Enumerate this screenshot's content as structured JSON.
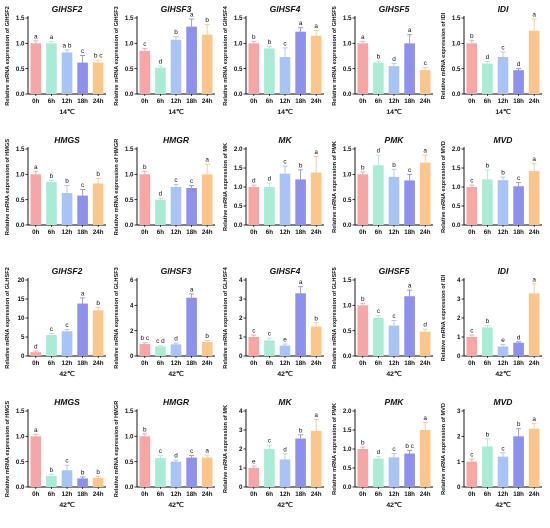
{
  "colors": [
    "#f7a5a5",
    "#a9ecd6",
    "#a8c4f6",
    "#8c91ee",
    "#fcc58a"
  ],
  "chart_data": [
    {
      "type": "bar",
      "title": "GlHSF2",
      "ylabel": "Relative mRNA expression of GlHSF2",
      "condition": "14℃",
      "categories": [
        "0h",
        "6h",
        "12h",
        "18h",
        "24h"
      ],
      "values": [
        1.0,
        1.0,
        0.82,
        0.62,
        0.62
      ],
      "errors": [
        0.05,
        0.04,
        0.05,
        0.14,
        0.05
      ],
      "letters": [
        "a",
        "a",
        "a b",
        "c",
        "b c"
      ],
      "ylim": [
        0,
        1.5
      ],
      "yticks": [
        "0.0",
        "0.5",
        "1.0",
        "1.5"
      ]
    },
    {
      "type": "bar",
      "title": "GlHSF3",
      "ylabel": "Relative mRNA expression of GlHSF3",
      "condition": "14℃",
      "categories": [
        "0h",
        "6h",
        "12h",
        "18h",
        "24h"
      ],
      "values": [
        0.85,
        0.52,
        1.07,
        1.33,
        1.17
      ],
      "errors": [
        0.05,
        0.03,
        0.06,
        0.15,
        0.2
      ],
      "letters": [
        "c",
        "d",
        "b",
        "a",
        "b"
      ],
      "ylim": [
        0,
        1.5
      ],
      "yticks": [
        "0.0",
        "0.5",
        "1.0",
        "1.5"
      ]
    },
    {
      "type": "bar",
      "title": "GlHSF4",
      "ylabel": "Relative mRNA expression of GlHSF4",
      "condition": "14℃",
      "categories": [
        "0h",
        "6h",
        "12h",
        "18h",
        "24h"
      ],
      "values": [
        1.0,
        0.9,
        0.73,
        1.23,
        1.15
      ],
      "errors": [
        0.04,
        0.04,
        0.18,
        0.08,
        0.1
      ],
      "letters": [
        "b",
        "b",
        "c",
        "a",
        "a"
      ],
      "ylim": [
        0,
        1.5
      ],
      "yticks": [
        "0.0",
        "0.5",
        "1.0",
        "1.5"
      ]
    },
    {
      "type": "bar",
      "title": "GlHSF5",
      "ylabel": "Relative mRNA expression of GlHSF5",
      "condition": "14℃",
      "categories": [
        "0h",
        "6h",
        "12h",
        "18h",
        "24h"
      ],
      "values": [
        1.0,
        0.62,
        0.55,
        1.0,
        0.47
      ],
      "errors": [
        0.04,
        0.03,
        0.05,
        0.17,
        0.05
      ],
      "letters": [
        "a",
        "b",
        "d",
        "a",
        "c"
      ],
      "ylim": [
        0,
        1.5
      ],
      "yticks": [
        "0.0",
        "0.5",
        "1.0",
        "1.5"
      ]
    },
    {
      "type": "bar",
      "title": "IDI",
      "ylabel": "Relative mRNA expression of IDI",
      "condition": "14℃",
      "categories": [
        "0h",
        "6h",
        "12h",
        "18h",
        "24h"
      ],
      "values": [
        1.0,
        0.6,
        0.73,
        0.47,
        1.25
      ],
      "errors": [
        0.06,
        0.04,
        0.1,
        0.03,
        0.23
      ],
      "letters": [
        "b",
        "d",
        "c",
        "d",
        "a"
      ],
      "ylim": [
        0,
        1.5
      ],
      "yticks": [
        "0.0",
        "0.5",
        "1.0",
        "1.5"
      ]
    },
    {
      "type": "bar",
      "title": "HMGS",
      "ylabel": "Relative mRNA expression of HMGS",
      "condition": "",
      "categories": [
        "0h",
        "6h",
        "12h",
        "18h",
        "24h"
      ],
      "values": [
        1.0,
        0.85,
        0.63,
        0.58,
        0.82
      ],
      "errors": [
        0.06,
        0.03,
        0.15,
        0.12,
        0.1
      ],
      "letters": [
        "a",
        "b",
        "b",
        "c",
        "b"
      ],
      "ylim": [
        0,
        1.5
      ],
      "yticks": [
        "0.0",
        "0.5",
        "1.0",
        "1.5"
      ]
    },
    {
      "type": "bar",
      "title": "HMGR",
      "ylabel": "Relative mRNA expression of HMGR",
      "condition": "",
      "categories": [
        "0h",
        "6h",
        "12h",
        "18h",
        "24h"
      ],
      "values": [
        1.0,
        0.5,
        0.75,
        0.73,
        1.0
      ],
      "errors": [
        0.06,
        0.03,
        0.05,
        0.05,
        0.2
      ],
      "letters": [
        "b",
        "d",
        "c",
        "c",
        "a"
      ],
      "ylim": [
        0,
        1.5
      ],
      "yticks": [
        "0.0",
        "0.5",
        "1.0",
        "1.5"
      ]
    },
    {
      "type": "bar",
      "title": "MK",
      "ylabel": "Relative mRNA expression of MK",
      "condition": "",
      "categories": [
        "0h",
        "6h",
        "12h",
        "18h",
        "24h"
      ],
      "values": [
        1.0,
        1.0,
        1.35,
        1.2,
        1.38
      ],
      "errors": [
        0.05,
        0.1,
        0.2,
        0.25,
        0.42
      ],
      "letters": [
        "d",
        "d",
        "c",
        "b",
        "a"
      ],
      "ylim": [
        0,
        2.0
      ],
      "yticks": [
        "0.0",
        "0.5",
        "1.0",
        "1.5",
        "2.0"
      ]
    },
    {
      "type": "bar",
      "title": "PMK",
      "ylabel": "Relative mRNA expression of PMK",
      "condition": "",
      "categories": [
        "0h",
        "6h",
        "12h",
        "18h",
        "24h"
      ],
      "values": [
        1.0,
        1.18,
        0.95,
        0.88,
        1.23
      ],
      "errors": [
        0.05,
        0.2,
        0.15,
        0.12,
        0.15
      ],
      "letters": [
        "b",
        "d",
        "b",
        "c",
        "a"
      ],
      "ylim": [
        0,
        1.5
      ],
      "yticks": [
        "0.0",
        "0.5",
        "1.0",
        "1.5"
      ]
    },
    {
      "type": "bar",
      "title": "MVD",
      "ylabel": "Relative mRNA expression of MVD",
      "condition": "",
      "categories": [
        "0h",
        "6h",
        "12h",
        "18h",
        "24h"
      ],
      "values": [
        1.0,
        1.2,
        1.18,
        1.02,
        1.42
      ],
      "errors": [
        0.05,
        0.25,
        0.08,
        0.1,
        0.2
      ],
      "letters": [
        "c",
        "b",
        "b",
        "c",
        "a"
      ],
      "ylim": [
        0,
        2.0
      ],
      "yticks": [
        "0.0",
        "0.5",
        "1.0",
        "1.5",
        "2.0"
      ]
    },
    {
      "type": "bar",
      "title": "GlHSF2",
      "ylabel": "Relative mRNA expression of GLHSF2",
      "condition": "42℃",
      "categories": [
        "0h",
        "6h",
        "12h",
        "18h",
        "24h"
      ],
      "values": [
        1.0,
        5.5,
        6.5,
        13.8,
        12.0
      ],
      "errors": [
        0.3,
        0.4,
        0.5,
        1.5,
        0.8
      ],
      "letters": [
        "d",
        "c",
        "c",
        "a",
        "b"
      ],
      "ylim": [
        0,
        20
      ],
      "yticks": [
        "0",
        "5",
        "10",
        "15",
        "20"
      ]
    },
    {
      "type": "bar",
      "title": "GlHSF3",
      "ylabel": "Relative mRNA expression of GLHSF3",
      "condition": "42℃",
      "categories": [
        "0h",
        "6h",
        "12h",
        "18h",
        "24h"
      ],
      "values": [
        0.95,
        0.75,
        0.92,
        4.6,
        1.1
      ],
      "errors": [
        0.1,
        0.08,
        0.1,
        0.3,
        0.12
      ],
      "letters": [
        "b c",
        "c d",
        "d",
        "a",
        "b"
      ],
      "ylim": [
        0,
        6
      ],
      "yticks": [
        "0",
        "2",
        "4",
        "6"
      ]
    },
    {
      "type": "bar",
      "title": "GlHSF4",
      "ylabel": "Relative mRNA expression of GLHSF4",
      "condition": "42℃",
      "categories": [
        "0h",
        "6h",
        "12h",
        "18h",
        "24h"
      ],
      "values": [
        1.0,
        0.82,
        0.55,
        3.3,
        1.55
      ],
      "errors": [
        0.1,
        0.12,
        0.08,
        0.35,
        0.2
      ],
      "letters": [
        "c",
        "c",
        "e",
        "a",
        "b"
      ],
      "ylim": [
        0,
        4
      ],
      "yticks": [
        "0",
        "1",
        "2",
        "3",
        "4"
      ]
    },
    {
      "type": "bar",
      "title": "GlHSF5",
      "ylabel": "Relative mRNA expression of GLHSF5",
      "condition": "42℃",
      "categories": [
        "0h",
        "6h",
        "12h",
        "18h",
        "24h"
      ],
      "values": [
        1.0,
        0.75,
        0.6,
        1.18,
        0.48
      ],
      "errors": [
        0.04,
        0.05,
        0.1,
        0.12,
        0.05
      ],
      "letters": [
        "b",
        "c",
        "c",
        "a",
        "d"
      ],
      "ylim": [
        0,
        1.5
      ],
      "yticks": [
        "0.0",
        "0.5",
        "1.0",
        "1.5"
      ]
    },
    {
      "type": "bar",
      "title": "IDI",
      "ylabel": "Relative mRNA expression of IDI",
      "condition": "42℃",
      "categories": [
        "0h",
        "6h",
        "12h",
        "18h",
        "24h"
      ],
      "values": [
        1.0,
        1.5,
        0.5,
        0.7,
        3.3
      ],
      "errors": [
        0.1,
        0.1,
        0.1,
        0.05,
        0.5
      ],
      "letters": [
        "c",
        "b",
        "e",
        "d",
        "a"
      ],
      "ylim": [
        0,
        4
      ],
      "yticks": [
        "0",
        "1",
        "2",
        "3",
        "4"
      ]
    },
    {
      "type": "bar",
      "title": "HMGS",
      "ylabel": "Relative mRNA expression of HMGS",
      "condition": "42℃",
      "categories": [
        "0h",
        "6h",
        "12h",
        "18h",
        "24h"
      ],
      "values": [
        1.0,
        0.22,
        0.33,
        0.17,
        0.18
      ],
      "errors": [
        0.04,
        0.03,
        0.1,
        0.03,
        0.03
      ],
      "letters": [
        "a",
        "b",
        "c",
        "b",
        "b"
      ],
      "ylim": [
        0,
        1.5
      ],
      "yticks": [
        "0.0",
        "0.5",
        "1.0",
        "1.5"
      ]
    },
    {
      "type": "bar",
      "title": "HMGR",
      "ylabel": "Relative mRNA expression of HMGR",
      "condition": "42℃",
      "categories": [
        "0h",
        "6h",
        "12h",
        "18h",
        "24h"
      ],
      "values": [
        1.0,
        0.57,
        0.5,
        0.58,
        0.58
      ],
      "errors": [
        0.05,
        0.05,
        0.03,
        0.04,
        0.05
      ],
      "letters": [
        "b",
        "c",
        "d",
        "c",
        "a"
      ],
      "ylim": [
        0,
        1.5
      ],
      "yticks": [
        "0.0",
        "0.5",
        "1.0",
        "1.5"
      ]
    },
    {
      "type": "bar",
      "title": "MK",
      "ylabel": "Relative mRNA expression of MK",
      "condition": "42℃",
      "categories": [
        "0h",
        "6h",
        "12h",
        "18h",
        "24h"
      ],
      "values": [
        1.0,
        2.0,
        1.45,
        2.55,
        2.95
      ],
      "errors": [
        0.1,
        0.2,
        0.3,
        0.2,
        0.6
      ],
      "letters": [
        "e",
        "c",
        "d",
        "b",
        "a"
      ],
      "ylim": [
        0,
        4
      ],
      "yticks": [
        "0",
        "1",
        "2",
        "3",
        "4"
      ]
    },
    {
      "type": "bar",
      "title": "PMK",
      "ylabel": "Relative mRNA expression of PMK",
      "condition": "42℃",
      "categories": [
        "0h",
        "6h",
        "12h",
        "18h",
        "24h"
      ],
      "values": [
        1.0,
        0.75,
        0.78,
        0.88,
        1.5
      ],
      "errors": [
        0.05,
        0.05,
        0.1,
        0.08,
        0.2
      ],
      "letters": [
        "b",
        "d",
        "c",
        "b c",
        "a"
      ],
      "ylim": [
        0,
        2.0
      ],
      "yticks": [
        "0.0",
        "0.5",
        "1.0",
        "1.5",
        "2.0"
      ]
    },
    {
      "type": "bar",
      "title": "MVD",
      "ylabel": "Relative mRNA expression of MVD",
      "condition": "42℃",
      "categories": [
        "0h",
        "6h",
        "12h",
        "18h",
        "24h"
      ],
      "values": [
        1.0,
        1.6,
        1.2,
        2.0,
        2.3
      ],
      "errors": [
        0.1,
        0.3,
        0.15,
        0.3,
        0.2
      ],
      "letters": [
        "c",
        "b",
        "c",
        "b",
        "a"
      ],
      "ylim": [
        0,
        3
      ],
      "yticks": [
        "0",
        "1",
        "2",
        "3"
      ]
    }
  ]
}
